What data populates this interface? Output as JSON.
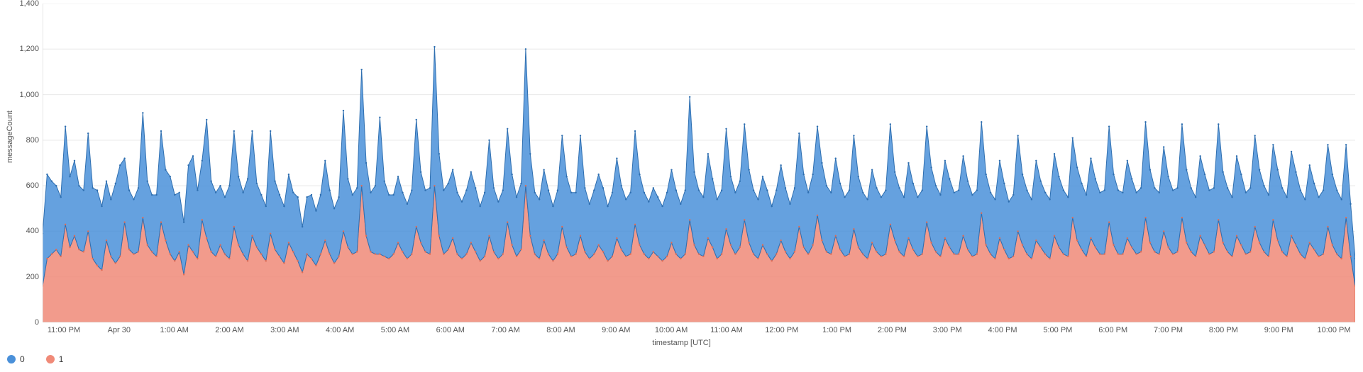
{
  "chart": {
    "type": "area-stacked",
    "ylabel": "messageCount",
    "xlabel": "timestamp [UTC]",
    "ylim": [
      0,
      1400
    ],
    "ytick_step": 200,
    "yticks": [
      "0",
      "200",
      "400",
      "600",
      "800",
      "1,000",
      "1,200",
      "1,400"
    ],
    "xticks": [
      "11:00 PM",
      "Apr 30",
      "1:00 AM",
      "2:00 AM",
      "3:00 AM",
      "4:00 AM",
      "5:00 AM",
      "6:00 AM",
      "7:00 AM",
      "8:00 AM",
      "9:00 AM",
      "10:00 AM",
      "11:00 AM",
      "12:00 PM",
      "1:00 PM",
      "2:00 PM",
      "3:00 PM",
      "4:00 PM",
      "5:00 PM",
      "6:00 PM",
      "7:00 PM",
      "8:00 PM",
      "9:00 PM",
      "10:00 PM"
    ],
    "background_color": "#ffffff",
    "grid_color": "#e8e8e8",
    "axis_color": "#cccccc",
    "label_color": "#555555",
    "label_fontsize": 11,
    "marker_radius": 1.2,
    "series": [
      {
        "name": "1",
        "fill": "#f08a78",
        "stroke": "#e06c55",
        "fill_opacity": 0.85,
        "values": [
          160,
          280,
          300,
          320,
          290,
          430,
          330,
          380,
          320,
          310,
          400,
          280,
          250,
          230,
          360,
          290,
          260,
          290,
          440,
          320,
          300,
          310,
          460,
          340,
          310,
          290,
          440,
          360,
          300,
          270,
          310,
          210,
          340,
          310,
          280,
          450,
          370,
          310,
          290,
          340,
          300,
          280,
          420,
          340,
          300,
          270,
          380,
          330,
          300,
          270,
          390,
          320,
          290,
          260,
          350,
          310,
          270,
          220,
          300,
          280,
          250,
          300,
          360,
          300,
          260,
          290,
          400,
          330,
          300,
          310,
          600,
          380,
          310,
          300,
          300,
          290,
          280,
          300,
          350,
          310,
          280,
          300,
          420,
          350,
          310,
          300,
          600,
          380,
          300,
          320,
          370,
          300,
          280,
          300,
          350,
          310,
          270,
          290,
          380,
          310,
          280,
          300,
          440,
          340,
          290,
          320,
          600,
          380,
          300,
          280,
          360,
          300,
          270,
          300,
          420,
          330,
          290,
          300,
          380,
          310,
          280,
          300,
          340,
          310,
          270,
          290,
          370,
          320,
          290,
          300,
          430,
          340,
          300,
          280,
          310,
          290,
          270,
          290,
          350,
          300,
          280,
          300,
          450,
          340,
          300,
          290,
          370,
          330,
          280,
          300,
          410,
          340,
          300,
          330,
          450,
          350,
          300,
          280,
          340,
          300,
          270,
          300,
          360,
          310,
          280,
          310,
          420,
          330,
          300,
          340,
          470,
          360,
          310,
          300,
          380,
          320,
          290,
          300,
          410,
          330,
          300,
          280,
          350,
          310,
          290,
          300,
          430,
          360,
          310,
          290,
          370,
          320,
          290,
          300,
          440,
          350,
          310,
          290,
          370,
          330,
          300,
          300,
          380,
          320,
          290,
          300,
          480,
          340,
          300,
          280,
          370,
          320,
          280,
          290,
          400,
          340,
          300,
          280,
          360,
          330,
          300,
          280,
          380,
          330,
          300,
          290,
          460,
          360,
          320,
          290,
          370,
          330,
          300,
          300,
          440,
          340,
          300,
          300,
          370,
          330,
          300,
          310,
          460,
          350,
          310,
          300,
          400,
          330,
          300,
          310,
          460,
          350,
          310,
          290,
          380,
          340,
          300,
          310,
          450,
          350,
          310,
          290,
          380,
          340,
          300,
          310,
          420,
          350,
          310,
          290,
          450,
          360,
          310,
          290,
          380,
          340,
          300,
          280,
          350,
          320,
          290,
          300,
          420,
          340,
          300,
          280,
          460,
          290,
          160
        ]
      },
      {
        "name": "0",
        "fill": "#4a90d9",
        "stroke": "#2f6fb0",
        "fill_opacity": 0.85,
        "values": [
          230,
          370,
          320,
          280,
          260,
          430,
          310,
          330,
          280,
          270,
          430,
          310,
          330,
          280,
          260,
          250,
          350,
          400,
          280,
          260,
          240,
          280,
          460,
          280,
          250,
          270,
          400,
          310,
          340,
          290,
          260,
          230,
          350,
          420,
          300,
          260,
          520,
          310,
          280,
          260,
          250,
          320,
          420,
          300,
          270,
          360,
          460,
          280,
          260,
          240,
          450,
          300,
          270,
          250,
          300,
          260,
          280,
          200,
          250,
          280,
          240,
          260,
          350,
          280,
          240,
          260,
          530,
          300,
          260,
          280,
          510,
          320,
          260,
          300,
          600,
          330,
          280,
          260,
          290,
          260,
          240,
          280,
          470,
          310,
          270,
          290,
          610,
          360,
          280,
          290,
          300,
          270,
          250,
          280,
          310,
          280,
          240,
          280,
          420,
          280,
          250,
          280,
          410,
          310,
          260,
          290,
          600,
          360,
          270,
          260,
          310,
          280,
          240,
          280,
          400,
          310,
          280,
          270,
          440,
          280,
          240,
          280,
          310,
          280,
          240,
          280,
          350,
          280,
          250,
          270,
          410,
          310,
          270,
          250,
          280,
          260,
          240,
          280,
          320,
          280,
          240,
          280,
          540,
          320,
          280,
          260,
          370,
          300,
          260,
          280,
          440,
          300,
          270,
          290,
          420,
          320,
          280,
          260,
          300,
          280,
          240,
          280,
          330,
          280,
          240,
          280,
          410,
          320,
          270,
          310,
          390,
          340,
          290,
          270,
          340,
          290,
          260,
          280,
          410,
          310,
          270,
          260,
          320,
          280,
          260,
          280,
          440,
          300,
          280,
          260,
          330,
          290,
          260,
          280,
          420,
          330,
          290,
          270,
          340,
          300,
          270,
          280,
          350,
          300,
          270,
          280,
          400,
          310,
          270,
          260,
          340,
          290,
          250,
          270,
          420,
          310,
          280,
          260,
          350,
          290,
          270,
          260,
          360,
          310,
          280,
          260,
          350,
          320,
          290,
          270,
          350,
          300,
          270,
          280,
          420,
          310,
          280,
          270,
          340,
          300,
          270,
          280,
          420,
          320,
          280,
          270,
          370,
          310,
          280,
          280,
          410,
          320,
          280,
          260,
          350,
          310,
          280,
          280,
          420,
          310,
          280,
          260,
          350,
          310,
          270,
          280,
          400,
          320,
          290,
          270,
          330,
          310,
          280,
          260,
          370,
          320,
          280,
          260,
          340,
          290,
          260,
          280,
          360,
          310,
          280,
          260,
          320,
          230,
          120
        ]
      }
    ],
    "legend": [
      {
        "label": "0",
        "color": "#4a90d9"
      },
      {
        "label": "1",
        "color": "#f08a78"
      }
    ]
  }
}
